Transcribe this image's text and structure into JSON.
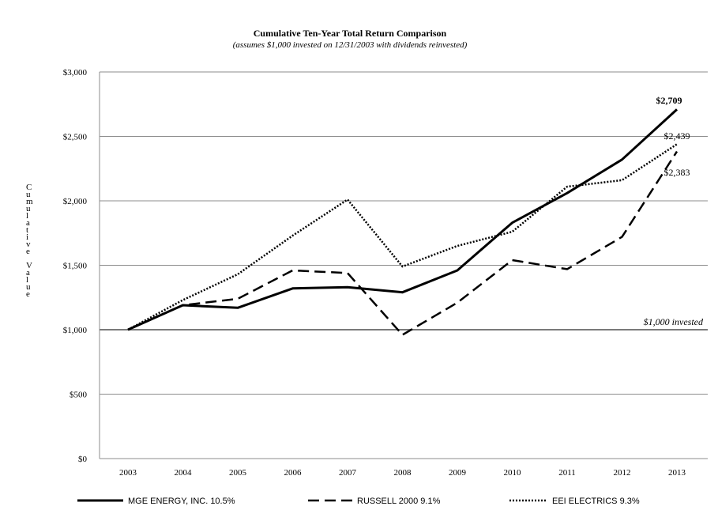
{
  "chart_data": {
    "type": "line",
    "title": "Cumulative Ten-Year Total Return Comparison",
    "subtitle": "(assumes $1,000 invested on 12/31/2003 with dividends reinvested)",
    "ylabel": "Cumulative Value",
    "xlabel": "",
    "ylim": [
      0,
      3000
    ],
    "yticks": [
      0,
      500,
      1000,
      1500,
      2000,
      2500,
      3000
    ],
    "ytick_labels": [
      "$0",
      "$500",
      "$1,000",
      "$1,500",
      "$2,000",
      "$2,500",
      "$3,000"
    ],
    "categories": [
      "2003",
      "2004",
      "2005",
      "2006",
      "2007",
      "2008",
      "2009",
      "2010",
      "2011",
      "2012",
      "2013"
    ],
    "grid": true,
    "series": [
      {
        "name": "MGE ENERGY, INC.",
        "cagr": "10.5%",
        "style": "solid",
        "values": [
          1000,
          1190,
          1170,
          1320,
          1330,
          1290,
          1460,
          1830,
          2060,
          2320,
          2709
        ],
        "end_label": "$2,709"
      },
      {
        "name": "RUSSELL 2000",
        "cagr": "9.1%",
        "style": "dashed",
        "values": [
          1000,
          1190,
          1240,
          1460,
          1440,
          960,
          1210,
          1540,
          1470,
          1720,
          2383
        ],
        "end_label": "$2,383"
      },
      {
        "name": "EEI ELECTRICS",
        "cagr": "9.3%",
        "style": "dotted",
        "values": [
          1000,
          1230,
          1430,
          1730,
          2010,
          1490,
          1650,
          1760,
          2110,
          2160,
          2439
        ],
        "end_label": "$2,439"
      }
    ],
    "reference_line": {
      "value": 1000,
      "label": "$1,000 invested"
    }
  }
}
